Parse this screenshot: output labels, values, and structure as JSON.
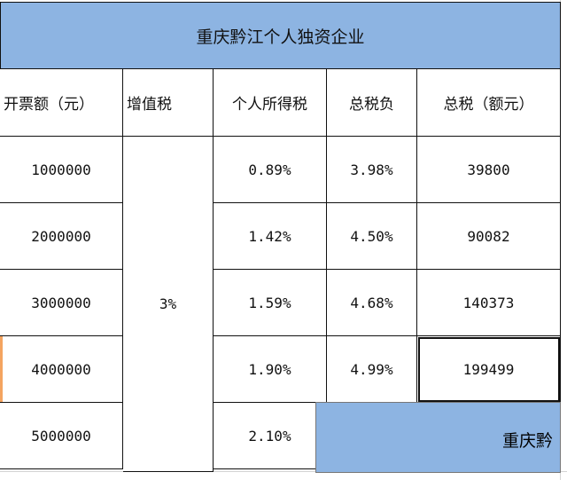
{
  "sheet": {
    "title": "重庆黔江个人独资企业",
    "headers": [
      "开票额（元）",
      "增值税",
      "个人所得税",
      "总税负",
      "总税（额元）"
    ],
    "vat_merged": "3%",
    "rows": [
      {
        "invoice": "1000000",
        "income_tax": "0.89%",
        "total_rate": "3.98%",
        "total_tax": "39800"
      },
      {
        "invoice": "2000000",
        "income_tax": "1.42%",
        "total_rate": "4.50%",
        "total_tax": "90082"
      },
      {
        "invoice": "3000000",
        "income_tax": "1.59%",
        "total_rate": "4.68%",
        "total_tax": "140373"
      },
      {
        "invoice": "4000000",
        "income_tax": "1.90%",
        "total_rate": "4.99%",
        "total_tax": "199499"
      },
      {
        "invoice": "5000000",
        "income_tax": "2.10%",
        "total_rate": "",
        "total_tax": ""
      }
    ],
    "drag_preview_text": "重庆黔",
    "colors": {
      "title_bg": "#8db4e2",
      "border": "#111111",
      "selection_marker": "#f4a460"
    }
  }
}
